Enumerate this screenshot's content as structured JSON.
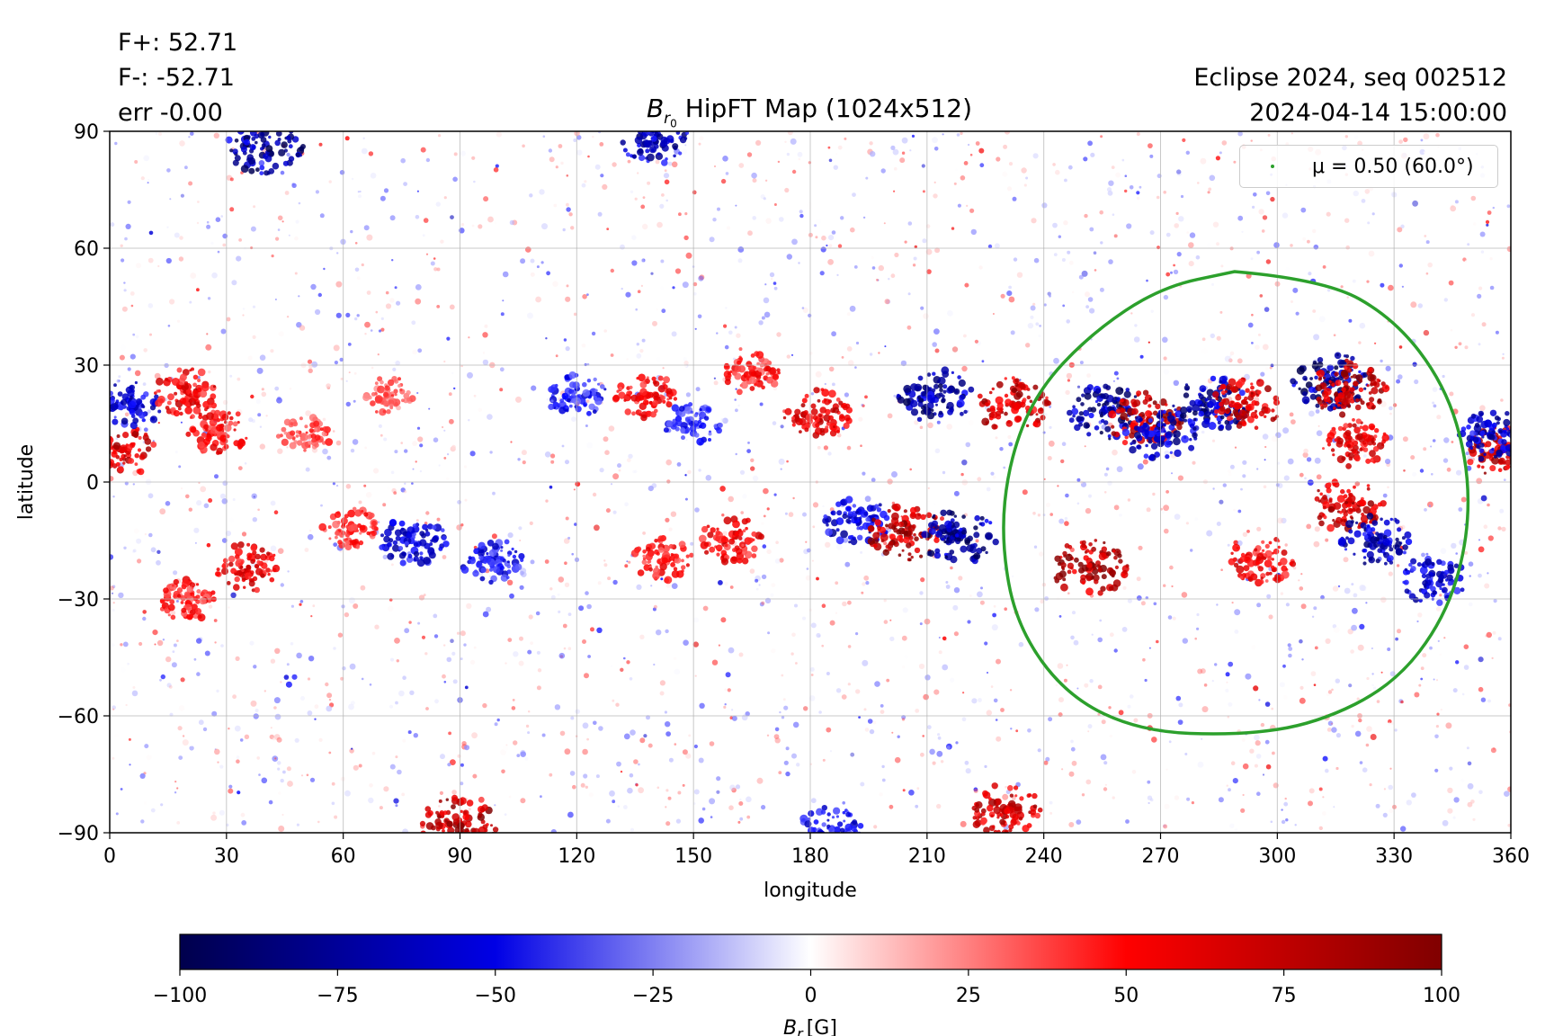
{
  "header": {
    "stats": [
      "F+: 52.71",
      "F-: -52.71",
      "err -0.00"
    ],
    "info": [
      "Eclipse 2024, seq 002512",
      "2024-04-14 15:00:00"
    ],
    "title_symbol": "B",
    "title_sub": "r",
    "title_subsub": "0",
    "title_rest": " HipFT Map (1024x512)"
  },
  "legend": {
    "label": "μ = 0.50 (60.0°)",
    "color": "#2ca02c"
  },
  "colorbar": {
    "label_symbol": "B",
    "label_sub": "r",
    "label_unit": "[G]",
    "ticks": [
      "−100",
      "−75",
      "−50",
      "−25",
      "0",
      "25",
      "50",
      "75",
      "100"
    ],
    "range": [
      -100,
      100
    ],
    "colormap": "seismic"
  },
  "chart_data": {
    "type": "heatmap",
    "title": "Br0 HipFT Map (1024x512)",
    "xlabel": "longitude",
    "ylabel": "latitude",
    "xlim": [
      0,
      360
    ],
    "ylim": [
      -90,
      90
    ],
    "xticks": [
      "0",
      "30",
      "60",
      "90",
      "120",
      "150",
      "180",
      "210",
      "240",
      "270",
      "300",
      "330",
      "360"
    ],
    "yticks": [
      "90",
      "60",
      "30",
      "0",
      "−30",
      "−60",
      "−90"
    ],
    "grid": true,
    "legend_position": "top-right",
    "contour": {
      "name": "μ = 0.50 (60.0°)",
      "color": "#2ca02c",
      "points": [
        [
          289,
          54
        ],
        [
          312,
          52
        ],
        [
          330,
          42
        ],
        [
          343,
          25
        ],
        [
          349,
          5
        ],
        [
          349,
          -15
        ],
        [
          343,
          -35
        ],
        [
          330,
          -52
        ],
        [
          310,
          -62
        ],
        [
          290,
          -65
        ],
        [
          265,
          -64
        ],
        [
          246,
          -55
        ],
        [
          233,
          -37
        ],
        [
          229,
          -15
        ],
        [
          231,
          5
        ],
        [
          238,
          23
        ],
        [
          252,
          38
        ],
        [
          270,
          50
        ],
        [
          289,
          54
        ]
      ]
    },
    "regions": [
      {
        "lon": 3,
        "lat": 8,
        "value": 80
      },
      {
        "lon": 5,
        "lat": 20,
        "value": -70
      },
      {
        "lon": 20,
        "lat": 23,
        "value": 70
      },
      {
        "lon": 28,
        "lat": 13,
        "value": 60
      },
      {
        "lon": 50,
        "lat": 12,
        "value": 45
      },
      {
        "lon": 72,
        "lat": 22,
        "value": 40
      },
      {
        "lon": 35,
        "lat": -22,
        "value": 70
      },
      {
        "lon": 20,
        "lat": -30,
        "value": 55
      },
      {
        "lon": 62,
        "lat": -12,
        "value": 50
      },
      {
        "lon": 78,
        "lat": -15,
        "value": -70
      },
      {
        "lon": 98,
        "lat": -20,
        "value": -60
      },
      {
        "lon": 120,
        "lat": 22,
        "value": -55
      },
      {
        "lon": 138,
        "lat": 22,
        "value": 60
      },
      {
        "lon": 150,
        "lat": 15,
        "value": -50
      },
      {
        "lon": 165,
        "lat": 28,
        "value": 55
      },
      {
        "lon": 182,
        "lat": 18,
        "value": 75
      },
      {
        "lon": 142,
        "lat": -20,
        "value": 60
      },
      {
        "lon": 160,
        "lat": -15,
        "value": 65
      },
      {
        "lon": 192,
        "lat": -10,
        "value": -70
      },
      {
        "lon": 204,
        "lat": -13,
        "value": 95
      },
      {
        "lon": 218,
        "lat": -14,
        "value": -95
      },
      {
        "lon": 212,
        "lat": 22,
        "value": -90
      },
      {
        "lon": 232,
        "lat": 20,
        "value": 85
      },
      {
        "lon": 252,
        "lat": -22,
        "value": 95
      },
      {
        "lon": 256,
        "lat": 18,
        "value": -90
      },
      {
        "lon": 266,
        "lat": 16,
        "value": 90
      },
      {
        "lon": 270,
        "lat": 12,
        "value": -80
      },
      {
        "lon": 283,
        "lat": 20,
        "value": -90
      },
      {
        "lon": 292,
        "lat": 20,
        "value": 80
      },
      {
        "lon": 314,
        "lat": 26,
        "value": -95
      },
      {
        "lon": 318,
        "lat": 24,
        "value": 95
      },
      {
        "lon": 320,
        "lat": 10,
        "value": 70
      },
      {
        "lon": 318,
        "lat": -6,
        "value": 85
      },
      {
        "lon": 325,
        "lat": -15,
        "value": -80
      },
      {
        "lon": 296,
        "lat": -20,
        "value": 65
      },
      {
        "lon": 340,
        "lat": -25,
        "value": -70
      },
      {
        "lon": 358,
        "lat": 8,
        "value": 85
      },
      {
        "lon": 355,
        "lat": 12,
        "value": -75
      },
      {
        "lon": 40,
        "lat": 86,
        "value": -90
      },
      {
        "lon": 90,
        "lat": -88,
        "value": 95
      },
      {
        "lon": 185,
        "lat": -89,
        "value": -60
      },
      {
        "lon": 230,
        "lat": -84,
        "value": 80
      },
      {
        "lon": 140,
        "lat": 88,
        "value": -80
      }
    ]
  }
}
